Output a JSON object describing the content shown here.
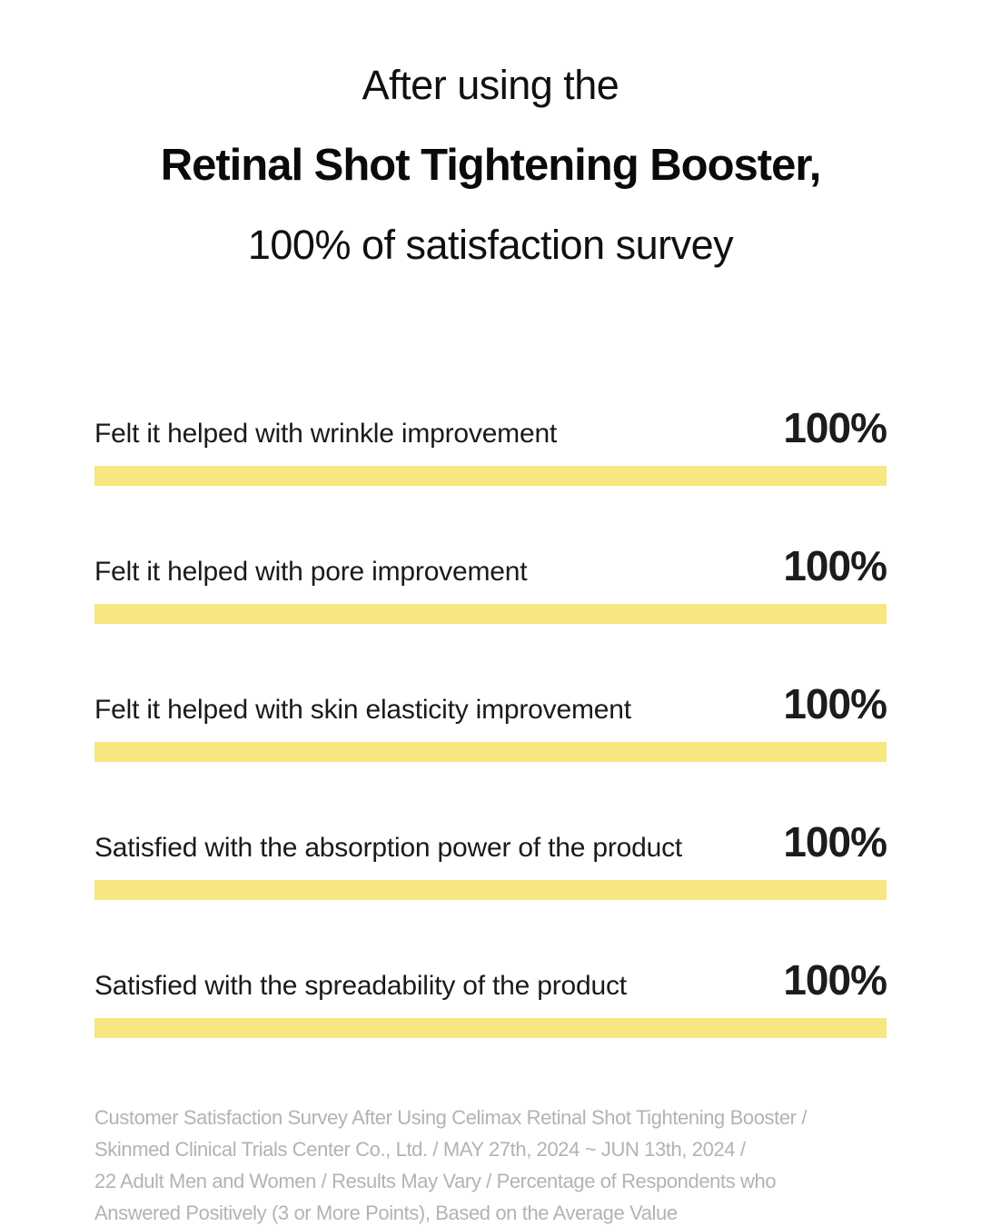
{
  "title": {
    "line1": "After using the",
    "line2": "Retinal Shot Tightening Booster,",
    "line3": "100% of satisfaction survey"
  },
  "survey": {
    "bar_color": "#F8E680",
    "items": [
      {
        "label": "Felt it helped with wrinkle improvement",
        "value": "100%"
      },
      {
        "label": "Felt it helped with pore improvement",
        "value": "100%"
      },
      {
        "label": "Felt it helped with skin elasticity improvement",
        "value": "100%"
      },
      {
        "label": "Satisfied with the absorption power of the product",
        "value": "100%"
      },
      {
        "label": "Satisfied with the spreadability of the product",
        "value": "100%"
      }
    ]
  },
  "footer": {
    "lines": [
      "Customer Satisfaction Survey After Using Celimax Retinal Shot Tightening Booster /",
      "Skinmed Clinical Trials Center Co., Ltd. / MAY 27th, 2024 ~ JUN 13th, 2024 /",
      "22 Adult Men and Women / Results May Vary / Percentage of Respondents who",
      "Answered Positively (3 or More Points), Based on the Average Value"
    ],
    "text_color": "#b3b3b3"
  },
  "chart_data": {
    "type": "bar",
    "orientation": "horizontal",
    "title": "After using the Retinal Shot Tightening Booster, 100% of satisfaction survey",
    "categories": [
      "Felt it helped with wrinkle improvement",
      "Felt it helped with pore improvement",
      "Felt it helped with skin elasticity improvement",
      "Satisfied with the absorption power of the product",
      "Satisfied with the spreadability of the product"
    ],
    "values": [
      100,
      100,
      100,
      100,
      100
    ],
    "value_labels": [
      "100%",
      "100%",
      "100%",
      "100%",
      "100%"
    ],
    "xlabel": "",
    "ylabel": "",
    "xlim": [
      0,
      100
    ],
    "grid": false,
    "legend": false,
    "bar_color": "#F8E680",
    "annotation": "Customer Satisfaction Survey After Using Celimax Retinal Shot Tightening Booster / Skinmed Clinical Trials Center Co., Ltd. / MAY 27th, 2024 ~ JUN 13th, 2024 / 22 Adult Men and Women / Results May Vary / Percentage of Respondents who Answered Positively (3 or More Points), Based on the Average Value"
  }
}
